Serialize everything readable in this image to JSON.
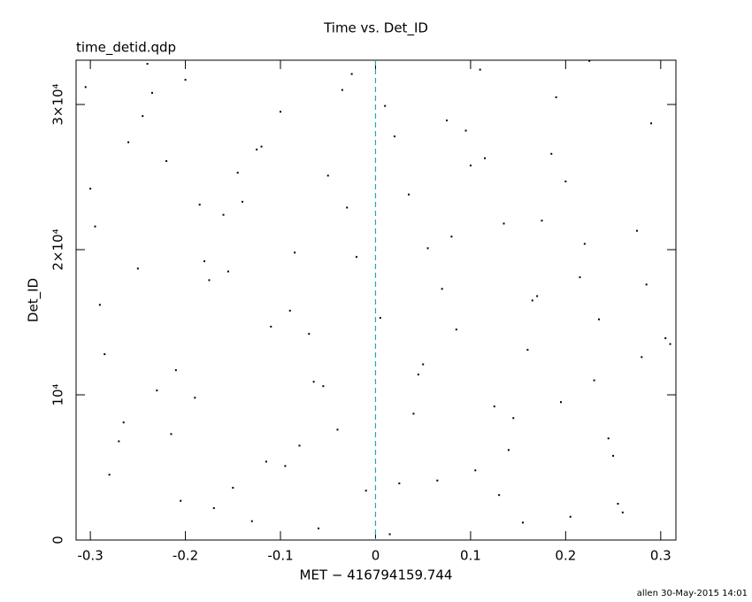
{
  "chart_data": {
    "type": "scatter",
    "title": "Time vs. Det_ID",
    "subtitle": "time_detid.qdp",
    "x_label": "MET − 416794159.744",
    "y_label": "Det_ID",
    "footer": "allen 30-May-2015 14:01",
    "color": "#000000",
    "vline": {
      "value": 0,
      "color": "#2aa6a6"
    },
    "xlim": [
      -0.315,
      0.316
    ],
    "ylim": [
      0,
      33050
    ],
    "xticks": [
      -0.3,
      -0.2,
      -0.1,
      0,
      0.1,
      0.2,
      0.3
    ],
    "yticks": [
      0,
      {
        "value": 10000,
        "label": "10⁴"
      },
      {
        "value": 20000,
        "label": "2×10⁴"
      },
      {
        "value": 30000,
        "label": "3×10⁴"
      }
    ],
    "x": [
      -0.305,
      -0.28,
      -0.25,
      -0.22,
      -0.19,
      -0.16,
      -0.13,
      -0.1,
      -0.07,
      -0.04,
      -0.01,
      0.02,
      0.05,
      0.08,
      0.11,
      0.14,
      0.17,
      0.2,
      0.23,
      0.26,
      0.29,
      0.31,
      -0.295,
      -0.265,
      -0.235,
      -0.205,
      -0.175,
      -0.145,
      -0.115,
      -0.085,
      -0.055,
      -0.025,
      0.005,
      0.035,
      0.065,
      0.095,
      0.125,
      0.155,
      0.185,
      0.215,
      0.245,
      0.275,
      0.305,
      -0.3,
      -0.27,
      -0.24,
      -0.21,
      -0.18,
      -0.15,
      -0.12,
      -0.09,
      -0.06,
      -0.03,
      0.01,
      0.04,
      0.07,
      0.1,
      0.13,
      0.16,
      0.19,
      0.22,
      0.25,
      0.28,
      -0.29,
      -0.26,
      -0.23,
      -0.2,
      -0.17,
      -0.14,
      -0.11,
      -0.08,
      -0.05,
      -0.02,
      0.015,
      0.045,
      0.075,
      0.105,
      0.135,
      0.165,
      0.195,
      0.225,
      0.255,
      0.285,
      -0.285,
      -0.245,
      -0.215,
      -0.185,
      -0.155,
      -0.125,
      -0.095,
      -0.065,
      -0.035,
      0.025,
      0.055,
      0.085,
      0.115,
      0.145,
      0.175,
      0.205,
      0.235
    ],
    "y": [
      31200,
      4500,
      18700,
      26100,
      9800,
      22400,
      1300,
      29500,
      14200,
      7600,
      3400,
      27800,
      12100,
      20900,
      32400,
      6200,
      16800,
      24700,
      11000,
      1900,
      28700,
      13500,
      21600,
      8100,
      30800,
      2700,
      17900,
      25300,
      5400,
      19800,
      10600,
      32100,
      15300,
      23800,
      4100,
      28200,
      9200,
      1200,
      26600,
      18100,
      7000,
      21300,
      13900,
      24200,
      6800,
      32800,
      11700,
      19200,
      3600,
      27100,
      15800,
      800,
      22900,
      29900,
      8700,
      17300,
      25800,
      3100,
      13100,
      30500,
      20400,
      5800,
      12600,
      16200,
      27400,
      10300,
      31700,
      2200,
      23300,
      14700,
      6500,
      25100,
      19500,
      400,
      11400,
      28900,
      4800,
      21800,
      16500,
      9500,
      33000,
      2500,
      17600,
      12800,
      29200,
      7300,
      23100,
      18500,
      26900,
      5100,
      10900,
      31000,
      3900,
      20100,
      14500,
      26300,
      8400,
      22000,
      1600,
      15200
    ]
  }
}
